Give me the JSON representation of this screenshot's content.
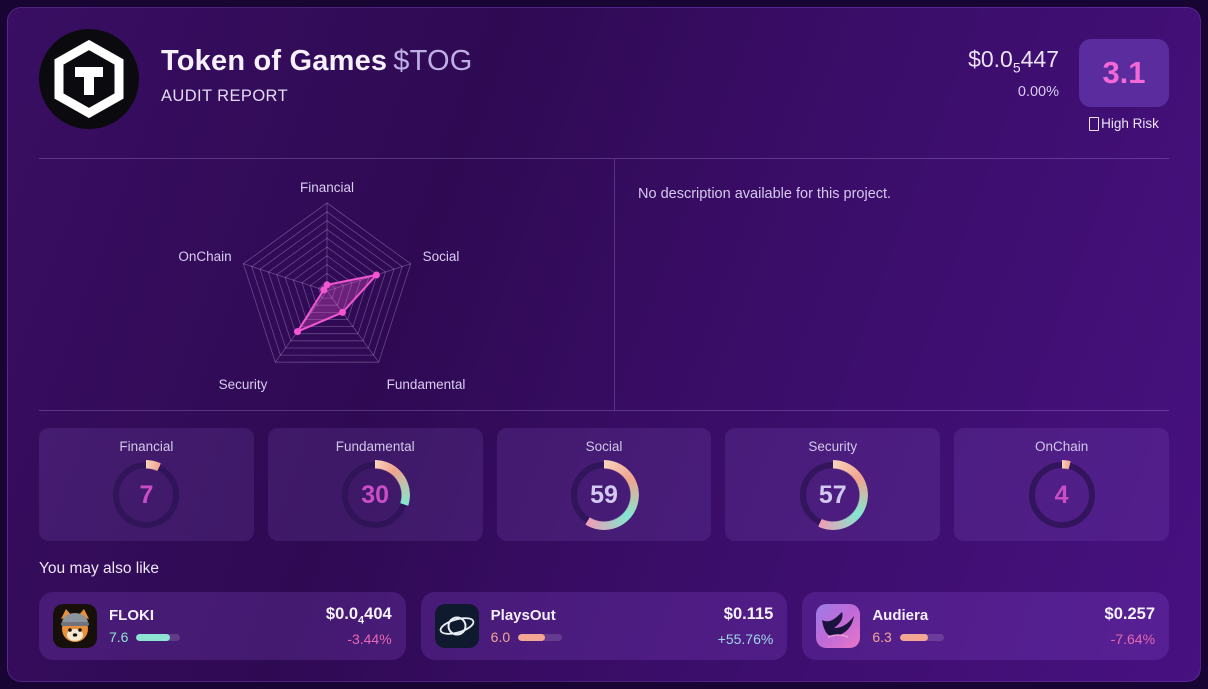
{
  "header": {
    "token_name": "Token of Games",
    "token_symbol": "$TOG",
    "report_label": "AUDIT REPORT",
    "price": {
      "prefix": "$0.0",
      "sub": "5",
      "rest": "447"
    },
    "change": "0.00%",
    "score": "3.1",
    "risk_label": "High Risk"
  },
  "description": {
    "text": "No description available for this project."
  },
  "chart_data": {
    "type": "radar",
    "categories": [
      "Financial",
      "Social",
      "Fundamental",
      "Security",
      "OnChain"
    ],
    "values": [
      7,
      59,
      30,
      57,
      4
    ],
    "scale_max": 100,
    "grid_levels": 10,
    "legend": "none",
    "stroke_color": "#f455d2",
    "fill_color": "rgba(244,85,210,0.30)",
    "grid_color": "rgba(233,213,255,0.30)",
    "label_color": "#d9cdf2"
  },
  "gauges": [
    {
      "label": "Financial",
      "value": 7
    },
    {
      "label": "Fundamental",
      "value": 30
    },
    {
      "label": "Social",
      "value": 59
    },
    {
      "label": "Security",
      "value": 57
    },
    {
      "label": "OnChain",
      "value": 4
    }
  ],
  "gauge_colors": {
    "arc_start": "#f8d3bd",
    "arc_salmon": "#f1a48e",
    "arc_teal": "#84e7d0",
    "arc_end_pink": "#f09cb6",
    "value_low": "#c94ec6",
    "value_high": "#d3c8ef"
  },
  "suggestions": {
    "title": "You may also like",
    "tokens": [
      {
        "name": "FLOKI",
        "icon": "floki-icon",
        "score": "7.6",
        "score_color": "#8de4d3",
        "price": {
          "prefix": "$0.0",
          "sub": "4",
          "rest": "404"
        },
        "change": "-3.44%",
        "change_color": "#e668b0"
      },
      {
        "name": "PlaysOut",
        "icon": "playsout-icon",
        "score": "6.0",
        "score_color": "#f2a693",
        "price": {
          "prefix": "$0.115",
          "sub": "",
          "rest": ""
        },
        "change": "+55.76%",
        "change_color": "#9fd6e8"
      },
      {
        "name": "Audiera",
        "icon": "audiera-icon",
        "score": "6.3",
        "score_color": "#f2a693",
        "price": {
          "prefix": "$0.257",
          "sub": "",
          "rest": ""
        },
        "change": "-7.64%",
        "change_color": "#e668b0"
      }
    ]
  }
}
